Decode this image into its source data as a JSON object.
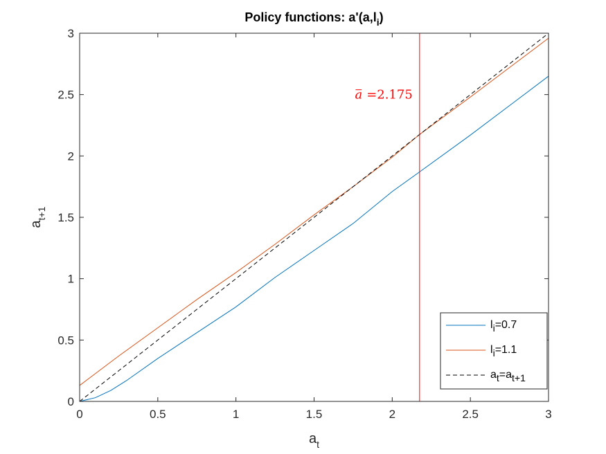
{
  "chart_data": {
    "type": "line",
    "title": {
      "main": "Policy functions: a'(a,l",
      "sub": "i",
      "close": ")"
    },
    "xlabel": {
      "main": "a",
      "sub": "t"
    },
    "ylabel": {
      "main": "a",
      "sub": "t+1"
    },
    "xlim": [
      0,
      3
    ],
    "ylim": [
      0,
      3
    ],
    "xticks": [
      0,
      0.5,
      1,
      1.5,
      2,
      2.5,
      3
    ],
    "xtick_labels": [
      "0",
      "0.5",
      "1",
      "1.5",
      "2",
      "2.5",
      "3"
    ],
    "yticks": [
      0,
      0.5,
      1,
      1.5,
      2,
      2.5,
      3
    ],
    "ytick_labels": [
      "0",
      "0.5",
      "1",
      "1.5",
      "2",
      "2.5",
      "3"
    ],
    "grid": false,
    "legend_position": "bottom-right",
    "series": [
      {
        "legend": {
          "main": "l",
          "sub": "i",
          "rest": "=0.7"
        },
        "color": "#0072BD",
        "style": "solid",
        "x": [
          0,
          0.1,
          0.2,
          0.3,
          0.5,
          0.75,
          1.0,
          1.25,
          1.5,
          1.75,
          2.0,
          2.175,
          2.5,
          2.75,
          3.0
        ],
        "y": [
          0,
          0.03,
          0.09,
          0.17,
          0.35,
          0.56,
          0.77,
          1.01,
          1.23,
          1.45,
          1.71,
          1.87,
          2.17,
          2.41,
          2.65
        ]
      },
      {
        "legend": {
          "main": "l",
          "sub": "i",
          "rest": "=1.1"
        },
        "color": "#D95319",
        "style": "solid",
        "x": [
          0,
          0.25,
          0.5,
          0.75,
          1.0,
          1.25,
          1.5,
          1.75,
          2.0,
          2.175,
          2.5,
          2.75,
          3.0
        ],
        "y": [
          0.13,
          0.37,
          0.6,
          0.83,
          1.05,
          1.28,
          1.52,
          1.75,
          1.99,
          2.175,
          2.48,
          2.72,
          2.96
        ]
      },
      {
        "legend": {
          "main": "a",
          "sub": "t",
          "rest": "=a",
          "sub2": "t+1"
        },
        "color": "#000000",
        "style": "dashed",
        "x": [
          0,
          3
        ],
        "y": [
          0,
          3
        ]
      }
    ],
    "vline": {
      "x": 2.175,
      "color": "#FF0000"
    },
    "annotation": {
      "bar": "a",
      "text": "=2.175",
      "x": 2.175,
      "y": 2.5,
      "color": "#FF0000"
    }
  }
}
